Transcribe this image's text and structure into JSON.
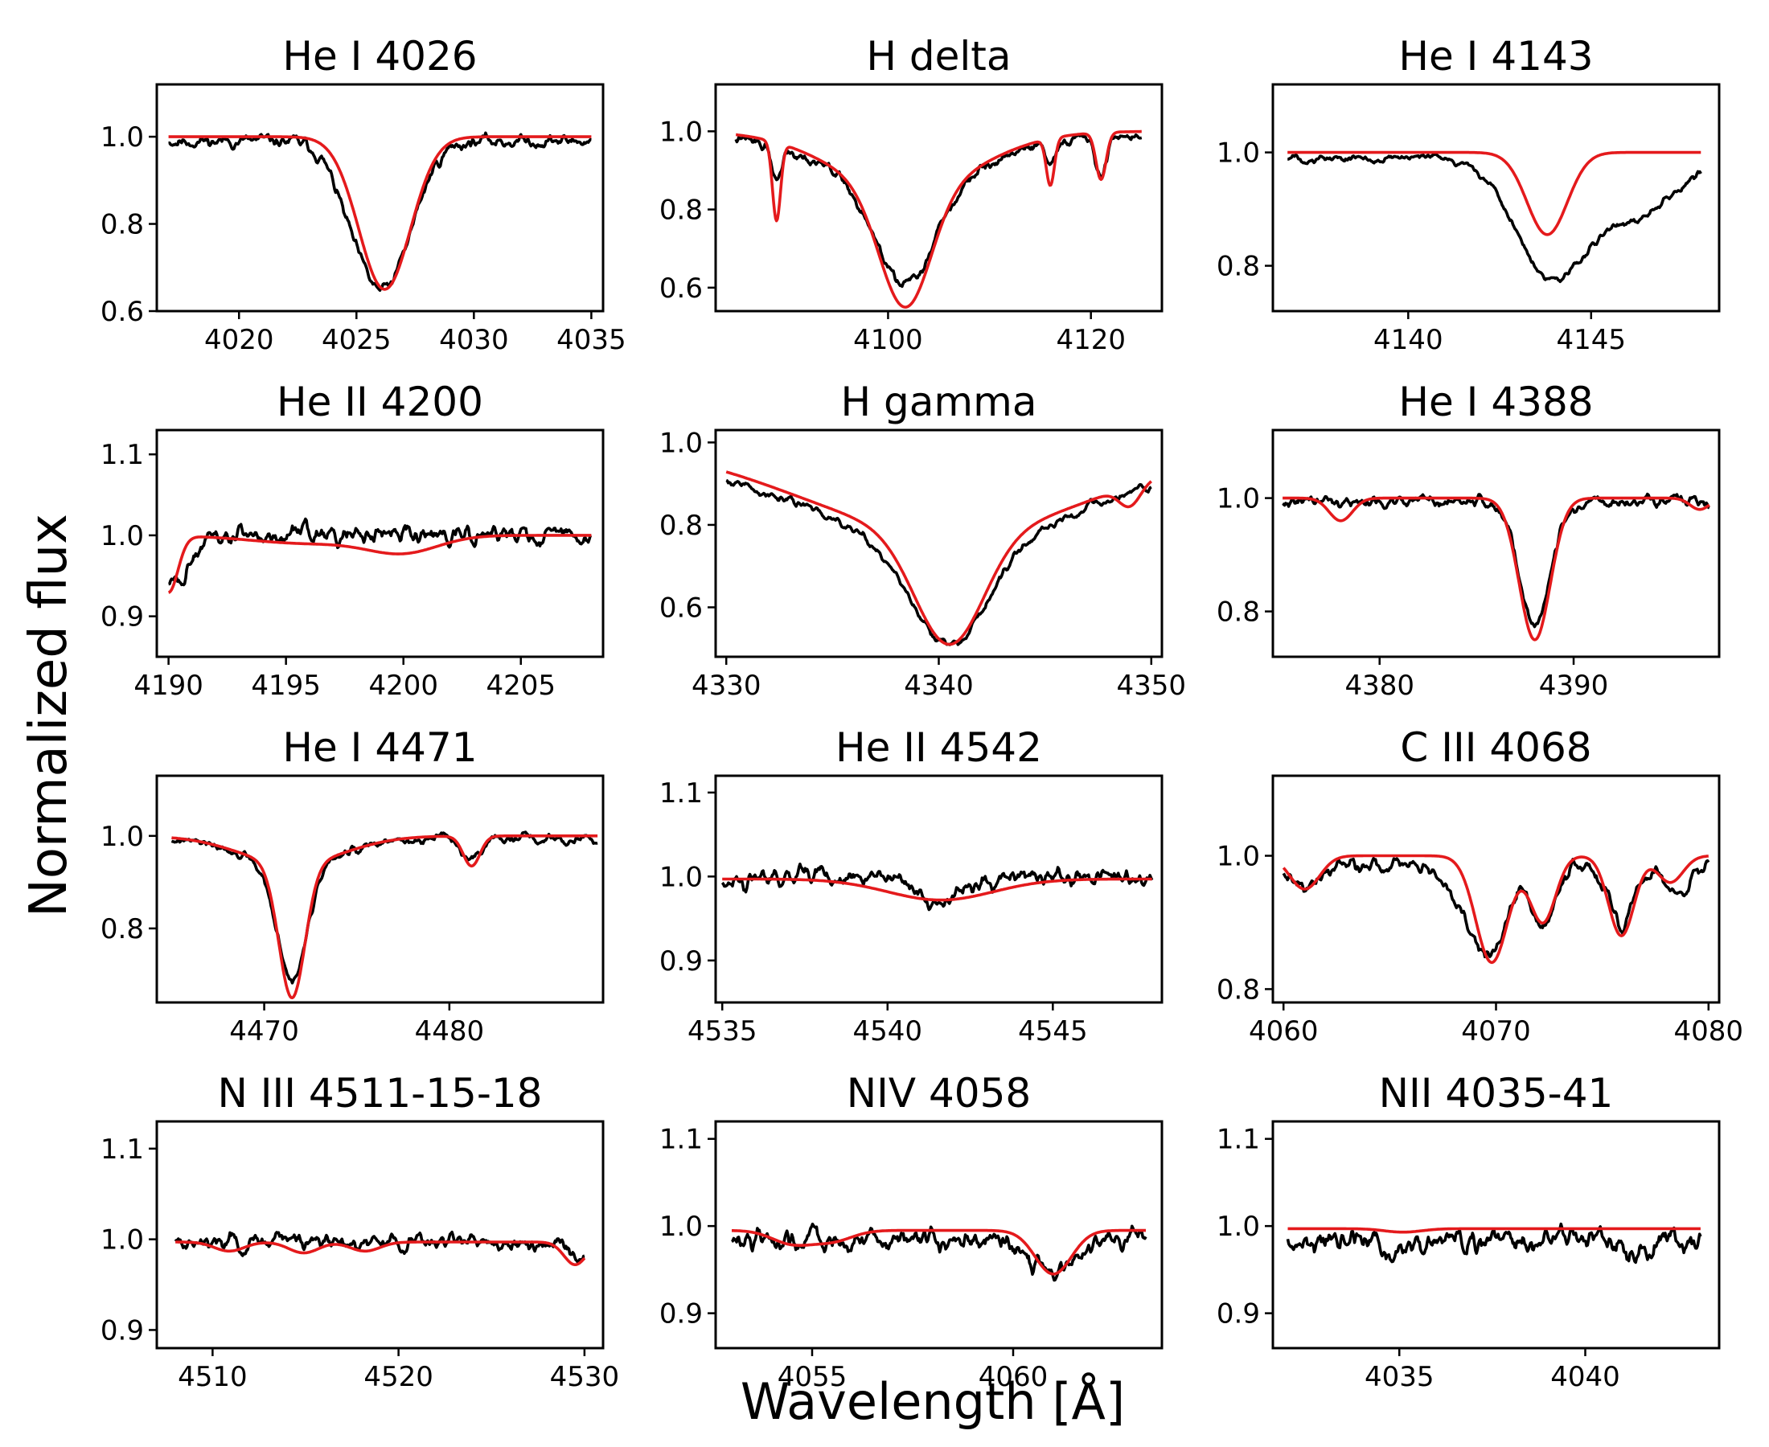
{
  "figure": {
    "ylabel": "Normalized flux",
    "xlabel": "Wavelength [Å]",
    "series_colors": {
      "observed": "#000000",
      "model": "#e41a1c"
    }
  },
  "chart_data": [
    {
      "type": "line",
      "title": "He I 4026",
      "xlim": [
        4016.5,
        4035.5
      ],
      "ylim": [
        0.6,
        1.12
      ],
      "xticks": [
        4020,
        4025,
        4030,
        4035
      ],
      "xtick_labels": [
        "4020",
        "4025",
        "4030",
        "4035"
      ],
      "yticks": [
        0.6,
        0.8,
        1.0
      ],
      "ytick_labels": [
        "0.6",
        "0.8",
        "1.0"
      ],
      "xrange": [
        4017,
        4035
      ],
      "model": {
        "continuum": 1.0,
        "lines": [
          [
            4026.2,
            0.35,
            1.1
          ]
        ]
      },
      "observed": {
        "continuum": 0.99,
        "lines": [
          [
            4026.2,
            0.33,
            1.15
          ],
          [
            4024.7,
            0.06,
            0.8
          ]
        ],
        "noise": 0.013,
        "seed": 11
      }
    },
    {
      "type": "line",
      "title": "H delta",
      "xlim": [
        4083,
        4127
      ],
      "ylim": [
        0.54,
        1.12
      ],
      "xticks": [
        4100,
        4120
      ],
      "xtick_labels": [
        "4100",
        "4120"
      ],
      "yticks": [
        0.6,
        0.8,
        1.0
      ],
      "ytick_labels": [
        "0.6",
        "0.8",
        "1.0"
      ],
      "xrange": [
        4085,
        4125
      ],
      "model": {
        "continuum": 1.0,
        "lines": [
          [
            4101.7,
            0.3,
            2.5
          ],
          [
            4101.7,
            0.15,
            7.0
          ],
          [
            4089.0,
            0.2,
            0.4
          ],
          [
            4116.0,
            0.12,
            0.4
          ],
          [
            4121.0,
            0.12,
            0.5
          ]
        ]
      },
      "observed": {
        "continuum": 0.99,
        "lines": [
          [
            4101.7,
            0.26,
            3.0
          ],
          [
            4101.7,
            0.12,
            7.5
          ],
          [
            4089.0,
            0.08,
            0.5
          ],
          [
            4116.0,
            0.05,
            0.5
          ],
          [
            4121.0,
            0.1,
            0.5
          ]
        ],
        "noise": 0.012,
        "seed": 22
      }
    },
    {
      "type": "line",
      "title": "He I 4143",
      "xlim": [
        4136.3,
        4148.5
      ],
      "ylim": [
        0.72,
        1.12
      ],
      "xticks": [
        4140,
        4145
      ],
      "xtick_labels": [
        "4140",
        "4145"
      ],
      "yticks": [
        0.8,
        1.0
      ],
      "ytick_labels": [
        "0.8",
        "1.0"
      ],
      "xrange": [
        4136.7,
        4148.0
      ],
      "model": {
        "continuum": 1.0,
        "lines": [
          [
            4143.8,
            0.145,
            0.55
          ]
        ]
      },
      "observed": {
        "continuum": 0.99,
        "lines": [
          [
            4143.8,
            0.16,
            0.9
          ],
          [
            4145.2,
            0.08,
            1.5
          ],
          [
            4146.5,
            0.04,
            1.0
          ]
        ],
        "noise": 0.006,
        "seed": 33
      }
    },
    {
      "type": "line",
      "title": "He II 4200",
      "xlim": [
        4189.5,
        4208.5
      ],
      "ylim": [
        0.85,
        1.13
      ],
      "xticks": [
        4190,
        4195,
        4200,
        4205
      ],
      "xtick_labels": [
        "4190",
        "4195",
        "4200",
        "4205"
      ],
      "yticks": [
        0.9,
        1.0,
        1.1
      ],
      "ytick_labels": [
        "0.9",
        "1.0",
        "1.1"
      ],
      "xrange": [
        4190,
        4208
      ],
      "model": {
        "continuum": 1.0,
        "lines": [
          [
            4190.0,
            0.07,
            0.4
          ],
          [
            4200.0,
            0.02,
            1.5
          ],
          [
            4196.0,
            0.01,
            2.5
          ]
        ]
      },
      "observed": {
        "continuum": 1.0,
        "lines": [
          [
            4190.0,
            0.06,
            0.9
          ]
        ],
        "noise": 0.01,
        "seed": 44
      }
    },
    {
      "type": "line",
      "title": "H gamma",
      "xlim": [
        4329.5,
        4350.5
      ],
      "ylim": [
        0.48,
        1.03
      ],
      "xticks": [
        4330,
        4340,
        4350
      ],
      "xtick_labels": [
        "4330",
        "4340",
        "4350"
      ],
      "yticks": [
        0.6,
        0.8,
        1.0
      ],
      "ytick_labels": [
        "0.6",
        "0.8",
        "1.0"
      ],
      "xrange": [
        4330,
        4350
      ],
      "model": {
        "continuum": 1.0,
        "lines": [
          [
            4340.5,
            0.27,
            1.6
          ],
          [
            4340.5,
            0.22,
            7.0
          ],
          [
            4349.0,
            0.05,
            0.5
          ]
        ]
      },
      "observed": {
        "continuum": 0.99,
        "lines": [
          [
            4340.5,
            0.25,
            1.8
          ],
          [
            4340.5,
            0.23,
            7.2
          ]
        ],
        "noise": 0.009,
        "seed": 55
      }
    },
    {
      "type": "line",
      "title": "He I 4388",
      "xlim": [
        4374.5,
        4397.5
      ],
      "ylim": [
        0.72,
        1.12
      ],
      "xticks": [
        4380,
        4390
      ],
      "xtick_labels": [
        "4380",
        "4390"
      ],
      "yticks": [
        0.8,
        1.0
      ],
      "ytick_labels": [
        "0.8",
        "1.0"
      ],
      "xrange": [
        4375,
        4397
      ],
      "model": {
        "continuum": 1.0,
        "lines": [
          [
            4388.0,
            0.25,
            0.8
          ],
          [
            4378.0,
            0.04,
            0.6
          ],
          [
            4396.5,
            0.02,
            0.5
          ]
        ]
      },
      "observed": {
        "continuum": 0.995,
        "lines": [
          [
            4388.0,
            0.22,
            0.8
          ]
        ],
        "noise": 0.009,
        "seed": 66
      }
    },
    {
      "type": "line",
      "title": "He I 4471",
      "xlim": [
        4464.2,
        4488.3
      ],
      "ylim": [
        0.64,
        1.13
      ],
      "xticks": [
        4470,
        4480
      ],
      "xtick_labels": [
        "4470",
        "4480"
      ],
      "yticks": [
        0.8,
        1.0
      ],
      "ytick_labels": [
        "0.8",
        "1.0"
      ],
      "xrange": [
        4465,
        4488
      ],
      "model": {
        "continuum": 1.0,
        "lines": [
          [
            4471.5,
            0.29,
            0.7
          ],
          [
            4471.5,
            0.06,
            2.8
          ],
          [
            4481.2,
            0.065,
            0.45
          ]
        ]
      },
      "observed": {
        "continuum": 0.995,
        "lines": [
          [
            4471.5,
            0.25,
            0.8
          ],
          [
            4471.5,
            0.06,
            2.8
          ],
          [
            4481.2,
            0.05,
            0.5
          ]
        ],
        "noise": 0.009,
        "seed": 77
      }
    },
    {
      "type": "line",
      "title": "He II 4542",
      "xlim": [
        4534.8,
        4548.3
      ],
      "ylim": [
        0.85,
        1.12
      ],
      "xticks": [
        4535,
        4540,
        4545
      ],
      "xtick_labels": [
        "4535",
        "4540",
        "4545"
      ],
      "yticks": [
        0.9,
        1.0,
        1.1
      ],
      "ytick_labels": [
        "0.9",
        "1.0",
        "1.1"
      ],
      "xrange": [
        4535,
        4548
      ],
      "model": {
        "continuum": 0.997,
        "lines": [
          [
            4541.6,
            0.025,
            1.6
          ]
        ]
      },
      "observed": {
        "continuum": 0.997,
        "lines": [
          [
            4541.6,
            0.03,
            0.5
          ]
        ],
        "noise": 0.009,
        "seed": 88
      }
    },
    {
      "type": "line",
      "title": "C III 4068",
      "xlim": [
        4059.5,
        4080.5
      ],
      "ylim": [
        0.78,
        1.12
      ],
      "xticks": [
        4060,
        4070,
        4080
      ],
      "xtick_labels": [
        "4060",
        "4070",
        "4080"
      ],
      "yticks": [
        0.8,
        1.0
      ],
      "ytick_labels": [
        "0.8",
        "1.0"
      ],
      "xrange": [
        4060,
        4080
      ],
      "model": {
        "continuum": 1.0,
        "lines": [
          [
            4069.8,
            0.16,
            0.75
          ],
          [
            4072.2,
            0.1,
            0.6
          ],
          [
            4075.9,
            0.12,
            0.6
          ],
          [
            4061.0,
            0.05,
            0.7
          ],
          [
            4078.2,
            0.04,
            0.6
          ]
        ]
      },
      "observed": {
        "continuum": 0.99,
        "lines": [
          [
            4069.8,
            0.12,
            0.75
          ],
          [
            4072.2,
            0.09,
            0.6
          ],
          [
            4075.9,
            0.1,
            0.6
          ],
          [
            4061.0,
            0.04,
            0.7
          ],
          [
            4078.5,
            0.05,
            0.6
          ],
          [
            4068.5,
            0.05,
            1.0
          ]
        ],
        "noise": 0.01,
        "seed": 99
      }
    },
    {
      "type": "line",
      "title": "N III 4511-15-18",
      "xlim": [
        4507.0,
        4531.0
      ],
      "ylim": [
        0.88,
        1.13
      ],
      "xticks": [
        4510,
        4520,
        4530
      ],
      "xtick_labels": [
        "4510",
        "4520",
        "4530"
      ],
      "yticks": [
        0.9,
        1.0,
        1.1
      ],
      "ytick_labels": [
        "0.9",
        "1.0",
        "1.1"
      ],
      "xrange": [
        4508,
        4530
      ],
      "model": {
        "continuum": 0.997,
        "lines": [
          [
            4510.9,
            0.01,
            0.8
          ],
          [
            4514.9,
            0.012,
            0.8
          ],
          [
            4518.2,
            0.01,
            0.8
          ],
          [
            4529.5,
            0.025,
            0.6
          ]
        ]
      },
      "observed": {
        "continuum": 0.998,
        "lines": [
          [
            4529.5,
            0.015,
            0.6
          ]
        ],
        "noise": 0.008,
        "seed": 111
      }
    },
    {
      "type": "line",
      "title": "NIV 4058",
      "xlim": [
        4052.6,
        4063.7
      ],
      "ylim": [
        0.86,
        1.12
      ],
      "xticks": [
        4055,
        4060
      ],
      "xtick_labels": [
        "4055",
        "4060"
      ],
      "yticks": [
        0.9,
        1.0,
        1.1
      ],
      "ytick_labels": [
        "0.9",
        "1.0",
        "1.1"
      ],
      "xrange": [
        4053,
        4063.3
      ],
      "model": {
        "continuum": 0.995,
        "lines": [
          [
            4061.0,
            0.05,
            0.45
          ],
          [
            4054.5,
            0.015,
            0.5
          ],
          [
            4055.5,
            0.012,
            0.5
          ]
        ]
      },
      "observed": {
        "continuum": 0.985,
        "lines": [
          [
            4061.0,
            0.04,
            0.5
          ]
        ],
        "noise": 0.01,
        "seed": 122
      }
    },
    {
      "type": "line",
      "title": "NII 4035-41",
      "xlim": [
        4031.6,
        4043.6
      ],
      "ylim": [
        0.86,
        1.12
      ],
      "xticks": [
        4035,
        4040
      ],
      "xtick_labels": [
        "4035",
        "4040"
      ],
      "yticks": [
        0.9,
        1.0,
        1.1
      ],
      "ytick_labels": [
        "0.9",
        "1.0",
        "1.1"
      ],
      "xrange": [
        4032,
        4043.1
      ],
      "model": {
        "continuum": 0.997,
        "lines": [
          [
            4035.1,
            0.004,
            0.5
          ]
        ]
      },
      "observed": {
        "continuum": 0.985,
        "lines": [
          [
            4041.3,
            0.025,
            0.3
          ],
          [
            4035.1,
            0.015,
            0.4
          ]
        ],
        "noise": 0.012,
        "seed": 133
      }
    }
  ]
}
